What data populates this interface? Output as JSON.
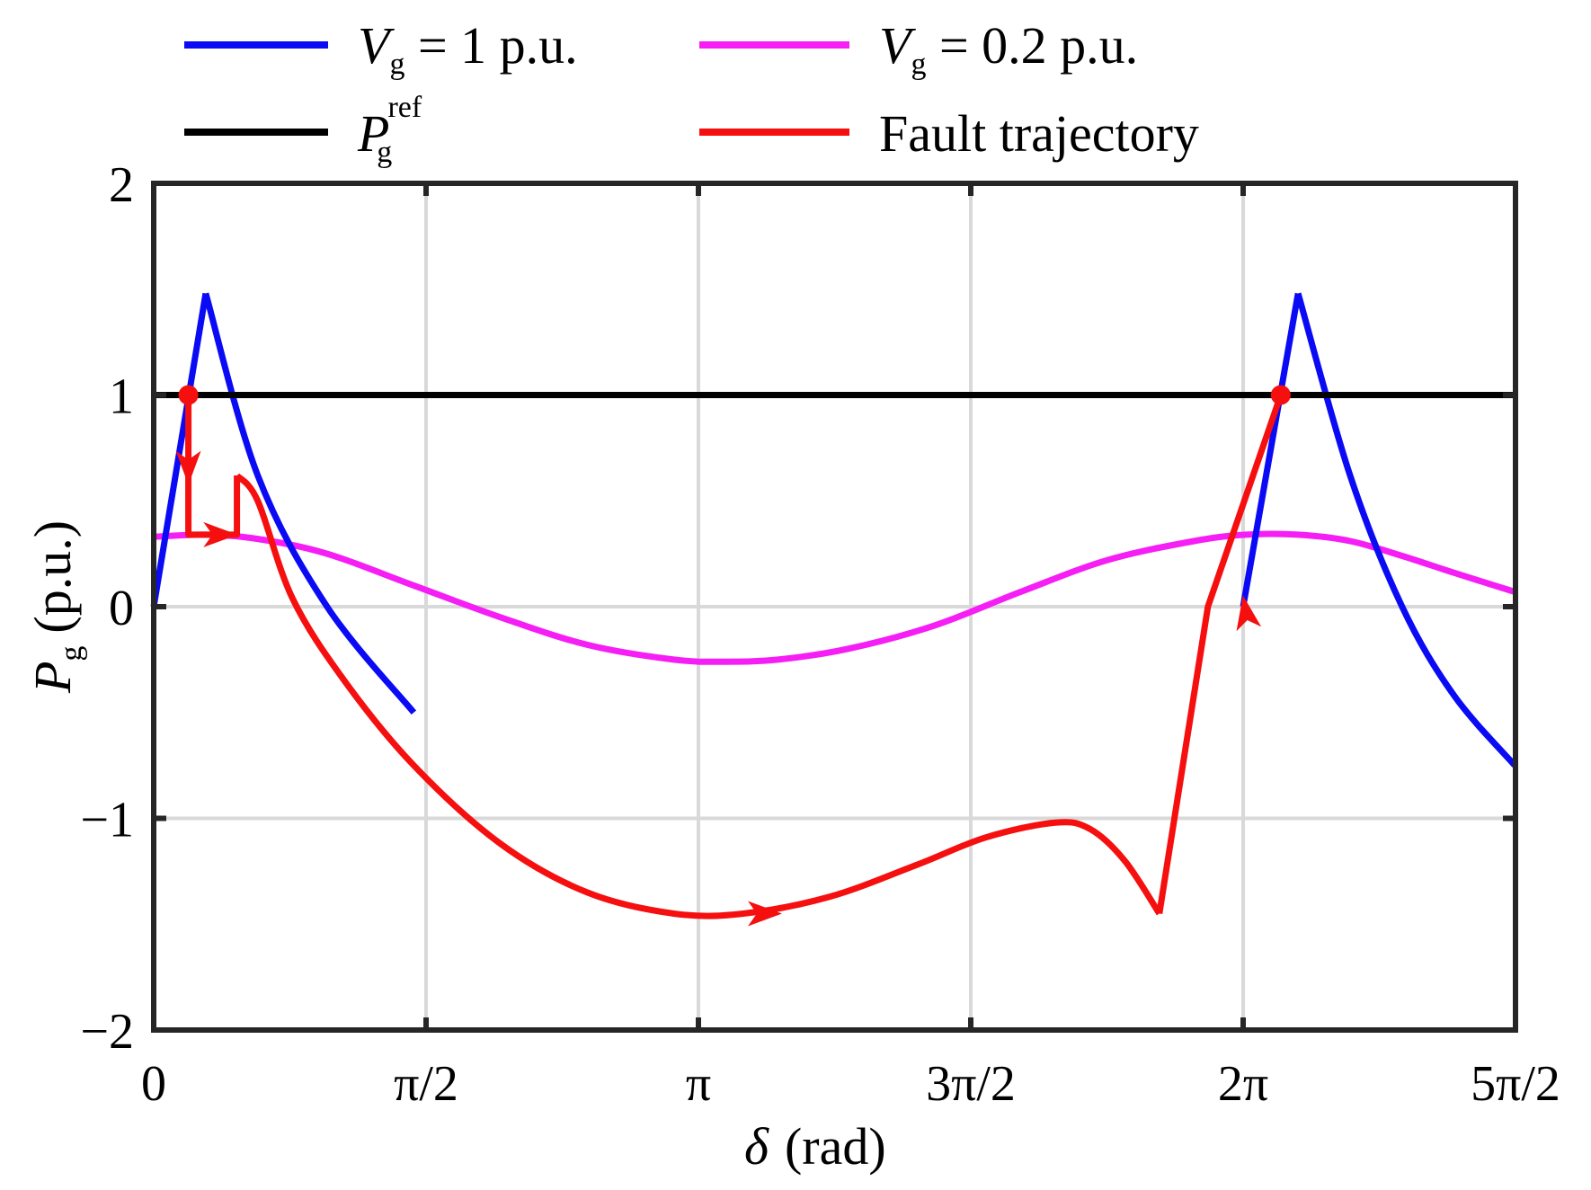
{
  "chart_data": {
    "type": "line",
    "title": "",
    "xlabel": {
      "symbol": "δ",
      "unit": "(rad)"
    },
    "ylabel": {
      "symbol": "P",
      "sub": "g",
      "unit": "(p.u.)"
    },
    "xlim": [
      0,
      7.853981634
    ],
    "ylim": [
      -2,
      2
    ],
    "grid": true,
    "xticks": [
      {
        "value": 0,
        "label": "0"
      },
      {
        "value": 1.570796327,
        "label": "π/2"
      },
      {
        "value": 3.141592654,
        "label": "π"
      },
      {
        "value": 4.71238898,
        "label": "3π/2"
      },
      {
        "value": 6.283185307,
        "label": "2π"
      },
      {
        "value": 7.853981634,
        "label": "5π/2"
      }
    ],
    "yticks": [
      {
        "value": 2,
        "label": "2"
      },
      {
        "value": 1,
        "label": "1"
      },
      {
        "value": 0,
        "label": "0"
      },
      {
        "value": -1,
        "label": "−1"
      },
      {
        "value": -2,
        "label": "−2"
      }
    ],
    "legend": {
      "position": "top-outside",
      "entries": [
        {
          "id": "vg1",
          "main": "V",
          "sub": "g",
          "rest": " = 1 p.u.",
          "color": "#0a0af5"
        },
        {
          "id": "vg02",
          "main": "V",
          "sub": "g",
          "rest": " = 0.2 p.u.",
          "color": "#f51ef5"
        },
        {
          "id": "pref",
          "main": "P",
          "sub": "g",
          "sup": "ref",
          "rest": "",
          "color": "#000000"
        },
        {
          "id": "fault",
          "main": "",
          "rest": "Fault trajectory",
          "color": "#f50f0f"
        }
      ]
    },
    "series": [
      {
        "name": "Vg = 1 p.u.",
        "color": "#0a0af5",
        "x": [
          0,
          0.3,
          0.6,
          1.0,
          1.5,
          6.283,
          6.6,
          6.9,
          7.2,
          7.5,
          7.85
        ],
        "y": [
          0,
          1.48,
          0.62,
          0.0,
          -0.5,
          0.0,
          1.48,
          0.62,
          0.0,
          -0.42,
          -0.75
        ]
      },
      {
        "name": "Vg = 0.2 p.u.",
        "color": "#f51ef5",
        "x": [
          0,
          0.3,
          0.6,
          1.0,
          1.5,
          2.0,
          2.5,
          3.0,
          3.3,
          3.6,
          4.0,
          4.5,
          5.0,
          5.5,
          6.0,
          6.3,
          6.6,
          6.9,
          7.2,
          7.5,
          7.85
        ],
        "y": [
          0.33,
          0.34,
          0.32,
          0.25,
          0.1,
          -0.05,
          -0.18,
          -0.25,
          -0.26,
          -0.25,
          -0.2,
          -0.09,
          0.07,
          0.22,
          0.31,
          0.34,
          0.34,
          0.31,
          0.24,
          0.16,
          0.07
        ]
      },
      {
        "name": "Pg ref",
        "color": "#000000",
        "x": [
          0,
          7.85
        ],
        "y": [
          1,
          1
        ]
      },
      {
        "name": "Fault trajectory",
        "color": "#f50f0f",
        "x": [
          0.2,
          0.2,
          0.48,
          0.48,
          0.6,
          0.8,
          1.1,
          1.5,
          2.0,
          2.5,
          3.0,
          3.4,
          3.9,
          4.4,
          4.8,
          5.2,
          5.4,
          5.6,
          5.8,
          6.08,
          6.5
        ],
        "y": [
          1.0,
          0.34,
          0.34,
          0.62,
          0.5,
          0.04,
          -0.35,
          -0.75,
          -1.12,
          -1.35,
          -1.45,
          -1.45,
          -1.37,
          -1.22,
          -1.09,
          -1.02,
          -1.05,
          -1.2,
          -1.45,
          0.0,
          1.0
        ]
      }
    ],
    "markers": [
      {
        "x": 0.2,
        "y": 1.0
      },
      {
        "x": 6.5,
        "y": 1.0
      }
    ],
    "arrows": [
      {
        "x": 0.2,
        "y": 0.66,
        "dir": "down"
      },
      {
        "x": 0.38,
        "y": 0.34,
        "dir": "right"
      },
      {
        "x": 3.52,
        "y": -1.45,
        "dir": "right"
      },
      {
        "x": 6.3,
        "y": -0.03,
        "dir": "up"
      }
    ]
  }
}
